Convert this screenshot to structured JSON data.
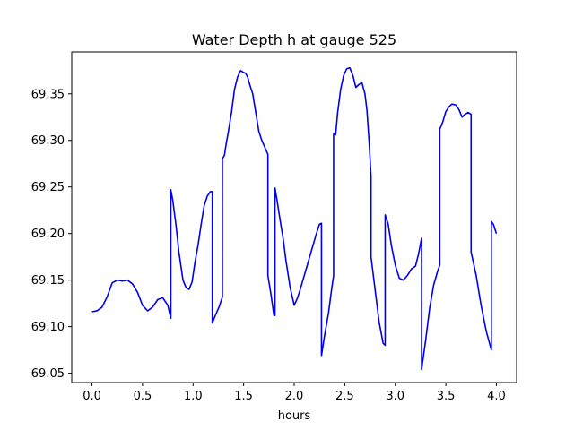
{
  "chart_data": {
    "type": "line",
    "title": "Water Depth h at gauge 525",
    "xlabel": "hours",
    "ylabel": "",
    "xlim": [
      -0.2,
      4.2
    ],
    "ylim": [
      69.04,
      69.395
    ],
    "xticks": [
      0.0,
      0.5,
      1.0,
      1.5,
      2.0,
      2.5,
      3.0,
      3.5,
      4.0
    ],
    "xtick_labels": [
      "0.0",
      "0.5",
      "1.0",
      "1.5",
      "2.0",
      "2.5",
      "3.0",
      "3.5",
      "4.0"
    ],
    "yticks": [
      69.05,
      69.1,
      69.15,
      69.2,
      69.25,
      69.3,
      69.35
    ],
    "ytick_labels": [
      "69.05",
      "69.10",
      "69.15",
      "69.20",
      "69.25",
      "69.30",
      "69.35"
    ],
    "grid": false,
    "legend": "none",
    "series": [
      {
        "color": "#0000ee",
        "x": [
          0.0,
          0.05,
          0.1,
          0.15,
          0.2,
          0.25,
          0.3,
          0.35,
          0.4,
          0.45,
          0.5,
          0.55,
          0.6,
          0.65,
          0.7,
          0.75,
          0.78,
          0.78,
          0.8,
          0.83,
          0.86,
          0.9,
          0.93,
          0.96,
          0.99,
          1.02,
          1.05,
          1.08,
          1.11,
          1.14,
          1.17,
          1.19,
          1.19,
          1.22,
          1.26,
          1.29,
          1.29,
          1.31,
          1.33,
          1.35,
          1.38,
          1.41,
          1.44,
          1.47,
          1.5,
          1.52,
          1.54,
          1.56,
          1.59,
          1.62,
          1.65,
          1.68,
          1.7,
          1.72,
          1.74,
          1.74,
          1.77,
          1.8,
          1.81,
          1.81,
          1.83,
          1.86,
          1.89,
          1.92,
          1.96,
          2.0,
          2.03,
          2.06,
          2.1,
          2.14,
          2.18,
          2.22,
          2.25,
          2.27,
          2.27,
          2.3,
          2.34,
          2.37,
          2.39,
          2.39,
          2.41,
          2.43,
          2.46,
          2.49,
          2.52,
          2.55,
          2.58,
          2.61,
          2.64,
          2.67,
          2.7,
          2.72,
          2.74,
          2.76,
          2.76,
          2.8,
          2.84,
          2.88,
          2.9,
          2.9,
          2.93,
          2.96,
          3.0,
          3.04,
          3.08,
          3.12,
          3.16,
          3.2,
          3.23,
          3.26,
          3.26,
          3.3,
          3.34,
          3.38,
          3.42,
          3.44,
          3.44,
          3.47,
          3.5,
          3.53,
          3.56,
          3.6,
          3.63,
          3.66,
          3.69,
          3.72,
          3.75,
          3.75,
          3.8,
          3.85,
          3.9,
          3.95,
          3.95,
          3.97,
          4.0
        ],
        "y": [
          69.116,
          69.117,
          69.121,
          69.132,
          69.147,
          69.15,
          69.149,
          69.15,
          69.146,
          69.137,
          69.123,
          69.117,
          69.121,
          69.129,
          69.131,
          69.123,
          69.109,
          69.247,
          69.235,
          69.21,
          69.18,
          69.15,
          69.142,
          69.14,
          69.148,
          69.17,
          69.188,
          69.21,
          69.23,
          69.24,
          69.245,
          69.245,
          69.104,
          69.112,
          69.122,
          69.132,
          69.28,
          69.284,
          69.298,
          69.31,
          69.33,
          69.355,
          69.368,
          69.375,
          69.373,
          69.372,
          69.368,
          69.36,
          69.35,
          69.33,
          69.31,
          69.3,
          69.295,
          69.29,
          69.285,
          69.155,
          69.135,
          69.112,
          69.112,
          69.249,
          69.236,
          69.215,
          69.195,
          69.17,
          69.142,
          69.123,
          69.13,
          69.14,
          69.155,
          69.17,
          69.185,
          69.2,
          69.21,
          69.211,
          69.069,
          69.09,
          69.115,
          69.14,
          69.155,
          69.308,
          69.306,
          69.33,
          69.355,
          69.37,
          69.377,
          69.378,
          69.37,
          69.357,
          69.36,
          69.362,
          69.35,
          69.332,
          69.3,
          69.262,
          69.175,
          69.14,
          69.105,
          69.082,
          69.08,
          69.22,
          69.21,
          69.188,
          69.166,
          69.152,
          69.15,
          69.155,
          69.162,
          69.165,
          69.178,
          69.195,
          69.054,
          69.085,
          69.12,
          69.145,
          69.16,
          69.166,
          69.312,
          69.32,
          69.331,
          69.336,
          69.339,
          69.338,
          69.333,
          69.325,
          69.328,
          69.33,
          69.328,
          69.18,
          69.155,
          69.122,
          69.095,
          69.075,
          69.213,
          69.21,
          69.2
        ]
      }
    ]
  }
}
